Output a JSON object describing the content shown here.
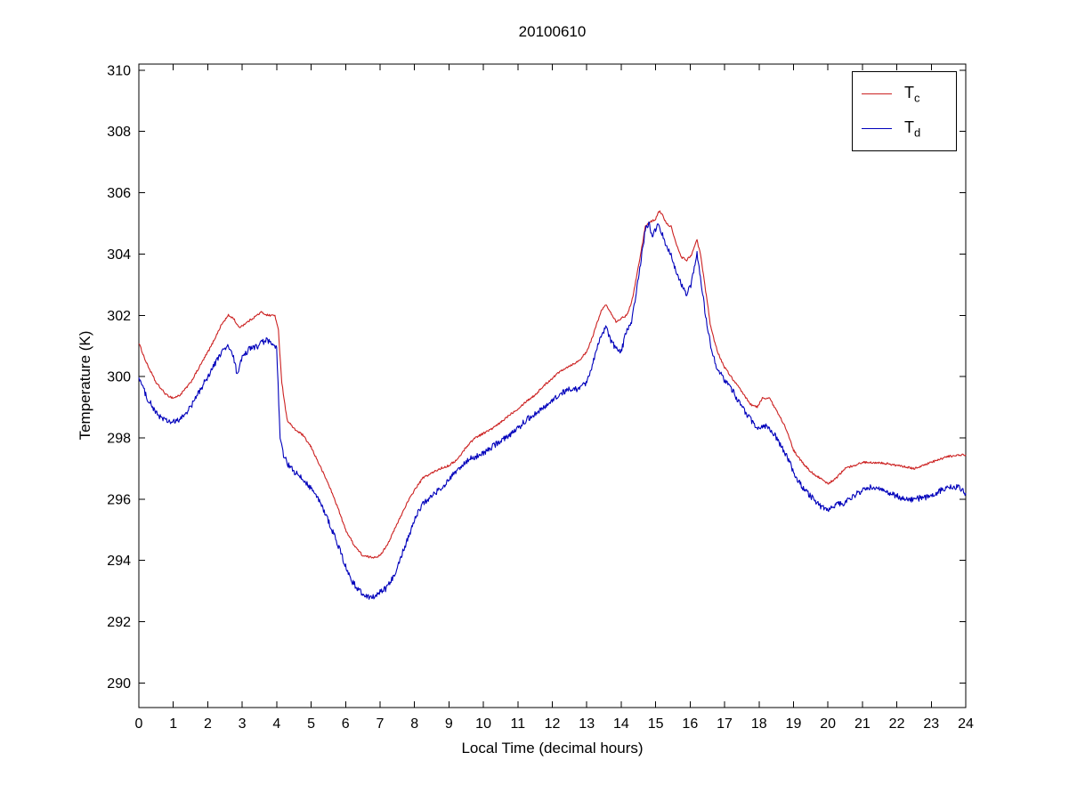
{
  "figure": {
    "title": "20100610",
    "background": "#ffffff"
  },
  "axes": {
    "xlabel": "Local Time (decimal hours)",
    "ylabel": "Temperature (K)",
    "xlim": [
      0,
      24
    ],
    "ylim": [
      289.2,
      310.2
    ],
    "xticks": [
      0,
      1,
      2,
      3,
      4,
      5,
      6,
      7,
      8,
      9,
      10,
      11,
      12,
      13,
      14,
      15,
      16,
      17,
      18,
      19,
      20,
      21,
      22,
      23,
      24
    ],
    "yticks": [
      290,
      292,
      294,
      296,
      298,
      300,
      302,
      304,
      306,
      308,
      310
    ],
    "box": true,
    "grid": false,
    "tick_direction": "in"
  },
  "legend": {
    "position": "top-right",
    "entries": [
      {
        "base": "T",
        "sub": "c",
        "color": "#cc2222"
      },
      {
        "base": "T",
        "sub": "d",
        "color": "#0000bb"
      }
    ]
  },
  "chart_data": {
    "type": "line",
    "title": "20100610",
    "xlabel": "Local Time (decimal hours)",
    "ylabel": "Temperature (K)",
    "xlim": [
      0,
      24
    ],
    "ylim": [
      289.2,
      310.2
    ],
    "grid": false,
    "legend_position": "top-right",
    "series": [
      {
        "name": "T_c",
        "color": "#cc2222",
        "noise": 0.035,
        "points": [
          [
            0,
            301.1
          ],
          [
            0.2,
            300.5
          ],
          [
            0.5,
            299.8
          ],
          [
            0.8,
            299.4
          ],
          [
            1,
            299.3
          ],
          [
            1.2,
            299.4
          ],
          [
            1.5,
            299.8
          ],
          [
            1.8,
            300.4
          ],
          [
            2.1,
            301.0
          ],
          [
            2.4,
            301.7
          ],
          [
            2.6,
            302.0
          ],
          [
            2.75,
            301.9
          ],
          [
            2.9,
            301.6
          ],
          [
            3.05,
            301.7
          ],
          [
            3.3,
            301.9
          ],
          [
            3.55,
            302.1
          ],
          [
            3.75,
            302.0
          ],
          [
            3.95,
            302.0
          ],
          [
            4.05,
            301.5
          ],
          [
            4.15,
            299.8
          ],
          [
            4.3,
            298.6
          ],
          [
            4.5,
            298.3
          ],
          [
            4.75,
            298.1
          ],
          [
            5,
            297.7
          ],
          [
            5.25,
            297.1
          ],
          [
            5.5,
            296.5
          ],
          [
            5.75,
            295.8
          ],
          [
            6,
            295.0
          ],
          [
            6.25,
            294.5
          ],
          [
            6.5,
            294.15
          ],
          [
            6.75,
            294.1
          ],
          [
            7,
            294.15
          ],
          [
            7.25,
            294.6
          ],
          [
            7.5,
            295.2
          ],
          [
            7.75,
            295.8
          ],
          [
            8,
            296.3
          ],
          [
            8.25,
            296.7
          ],
          [
            8.5,
            296.85
          ],
          [
            8.75,
            297.0
          ],
          [
            9,
            297.1
          ],
          [
            9.25,
            297.3
          ],
          [
            9.5,
            297.7
          ],
          [
            9.75,
            298.0
          ],
          [
            10,
            298.15
          ],
          [
            10.25,
            298.3
          ],
          [
            10.5,
            298.5
          ],
          [
            10.75,
            298.75
          ],
          [
            11,
            298.95
          ],
          [
            11.25,
            299.2
          ],
          [
            11.5,
            299.4
          ],
          [
            11.75,
            299.7
          ],
          [
            12,
            299.95
          ],
          [
            12.25,
            300.2
          ],
          [
            12.5,
            300.35
          ],
          [
            12.75,
            300.5
          ],
          [
            13,
            300.8
          ],
          [
            13.2,
            301.4
          ],
          [
            13.4,
            302.1
          ],
          [
            13.55,
            302.35
          ],
          [
            13.7,
            302.1
          ],
          [
            13.85,
            301.8
          ],
          [
            14,
            301.9
          ],
          [
            14.15,
            302.0
          ],
          [
            14.3,
            302.4
          ],
          [
            14.5,
            303.6
          ],
          [
            14.7,
            304.9
          ],
          [
            14.85,
            305.05
          ],
          [
            15,
            305.15
          ],
          [
            15.1,
            305.4
          ],
          [
            15.2,
            305.3
          ],
          [
            15.3,
            305.0
          ],
          [
            15.45,
            304.9
          ],
          [
            15.6,
            304.3
          ],
          [
            15.75,
            303.9
          ],
          [
            15.9,
            303.8
          ],
          [
            16.05,
            304.0
          ],
          [
            16.2,
            304.45
          ],
          [
            16.3,
            304.0
          ],
          [
            16.45,
            302.8
          ],
          [
            16.6,
            301.6
          ],
          [
            16.8,
            300.8
          ],
          [
            17,
            300.3
          ],
          [
            17.25,
            299.9
          ],
          [
            17.5,
            299.5
          ],
          [
            17.75,
            299.1
          ],
          [
            17.95,
            299.0
          ],
          [
            18.1,
            299.3
          ],
          [
            18.3,
            299.3
          ],
          [
            18.5,
            298.9
          ],
          [
            18.75,
            298.4
          ],
          [
            19,
            297.6
          ],
          [
            19.25,
            297.2
          ],
          [
            19.5,
            296.9
          ],
          [
            19.75,
            296.7
          ],
          [
            20,
            296.5
          ],
          [
            20.25,
            296.7
          ],
          [
            20.5,
            297.0
          ],
          [
            20.75,
            297.1
          ],
          [
            21,
            297.2
          ],
          [
            21.5,
            297.2
          ],
          [
            22,
            297.1
          ],
          [
            22.5,
            297.0
          ],
          [
            23,
            297.2
          ],
          [
            23.5,
            297.4
          ],
          [
            24,
            297.45
          ]
        ]
      },
      {
        "name": "T_d",
        "color": "#0000bb",
        "noise": 0.1,
        "points": [
          [
            0,
            300.0
          ],
          [
            0.2,
            299.4
          ],
          [
            0.5,
            298.8
          ],
          [
            0.8,
            298.55
          ],
          [
            1,
            298.5
          ],
          [
            1.2,
            298.6
          ],
          [
            1.5,
            299.0
          ],
          [
            1.8,
            299.6
          ],
          [
            2.1,
            300.2
          ],
          [
            2.4,
            300.8
          ],
          [
            2.6,
            301.0
          ],
          [
            2.75,
            300.6
          ],
          [
            2.85,
            300.1
          ],
          [
            3,
            300.6
          ],
          [
            3.2,
            300.9
          ],
          [
            3.45,
            301.0
          ],
          [
            3.7,
            301.2
          ],
          [
            3.9,
            301.0
          ],
          [
            4,
            300.9
          ],
          [
            4.1,
            298.0
          ],
          [
            4.2,
            297.4
          ],
          [
            4.35,
            297.1
          ],
          [
            4.5,
            296.9
          ],
          [
            4.7,
            296.7
          ],
          [
            4.9,
            296.5
          ],
          [
            5.1,
            296.2
          ],
          [
            5.3,
            295.8
          ],
          [
            5.5,
            295.3
          ],
          [
            5.75,
            294.6
          ],
          [
            6,
            293.8
          ],
          [
            6.2,
            293.3
          ],
          [
            6.4,
            293.0
          ],
          [
            6.6,
            292.85
          ],
          [
            6.8,
            292.8
          ],
          [
            7,
            292.95
          ],
          [
            7.2,
            293.1
          ],
          [
            7.4,
            293.5
          ],
          [
            7.6,
            294.1
          ],
          [
            7.8,
            294.7
          ],
          [
            8,
            295.3
          ],
          [
            8.2,
            295.8
          ],
          [
            8.4,
            296.0
          ],
          [
            8.6,
            296.2
          ],
          [
            8.8,
            296.4
          ],
          [
            9,
            296.6
          ],
          [
            9.2,
            296.9
          ],
          [
            9.4,
            297.1
          ],
          [
            9.6,
            297.3
          ],
          [
            9.8,
            297.4
          ],
          [
            10,
            297.5
          ],
          [
            10.25,
            297.7
          ],
          [
            10.5,
            297.9
          ],
          [
            10.75,
            298.1
          ],
          [
            11,
            298.3
          ],
          [
            11.25,
            298.6
          ],
          [
            11.5,
            298.8
          ],
          [
            11.75,
            299.0
          ],
          [
            12,
            299.2
          ],
          [
            12.25,
            299.45
          ],
          [
            12.5,
            299.6
          ],
          [
            12.75,
            299.6
          ],
          [
            13,
            299.8
          ],
          [
            13.2,
            300.5
          ],
          [
            13.4,
            301.3
          ],
          [
            13.55,
            301.6
          ],
          [
            13.7,
            301.2
          ],
          [
            13.85,
            300.9
          ],
          [
            14,
            300.8
          ],
          [
            14.15,
            301.5
          ],
          [
            14.3,
            301.8
          ],
          [
            14.5,
            303.2
          ],
          [
            14.7,
            304.8
          ],
          [
            14.8,
            305.0
          ],
          [
            14.9,
            304.6
          ],
          [
            15,
            304.8
          ],
          [
            15.1,
            305.0
          ],
          [
            15.2,
            304.6
          ],
          [
            15.3,
            304.3
          ],
          [
            15.45,
            304.0
          ],
          [
            15.6,
            303.4
          ],
          [
            15.75,
            303.0
          ],
          [
            15.9,
            302.7
          ],
          [
            16,
            302.9
          ],
          [
            16.1,
            303.4
          ],
          [
            16.2,
            304.0
          ],
          [
            16.3,
            303.2
          ],
          [
            16.45,
            302.0
          ],
          [
            16.6,
            301.0
          ],
          [
            16.8,
            300.2
          ],
          [
            17,
            299.9
          ],
          [
            17.25,
            299.5
          ],
          [
            17.5,
            299.0
          ],
          [
            17.75,
            298.6
          ],
          [
            18,
            298.3
          ],
          [
            18.2,
            298.4
          ],
          [
            18.4,
            298.2
          ],
          [
            18.6,
            297.8
          ],
          [
            18.8,
            297.4
          ],
          [
            19,
            296.9
          ],
          [
            19.25,
            296.4
          ],
          [
            19.5,
            296.1
          ],
          [
            19.75,
            295.8
          ],
          [
            20,
            295.65
          ],
          [
            20.25,
            295.8
          ],
          [
            20.5,
            295.9
          ],
          [
            20.75,
            296.1
          ],
          [
            21,
            296.3
          ],
          [
            21.25,
            296.4
          ],
          [
            21.5,
            296.35
          ],
          [
            21.75,
            296.2
          ],
          [
            22,
            296.1
          ],
          [
            22.25,
            296.0
          ],
          [
            22.5,
            296.0
          ],
          [
            23,
            296.1
          ],
          [
            23.3,
            296.3
          ],
          [
            23.6,
            296.4
          ],
          [
            23.8,
            296.4
          ],
          [
            24,
            296.2
          ]
        ]
      }
    ]
  }
}
